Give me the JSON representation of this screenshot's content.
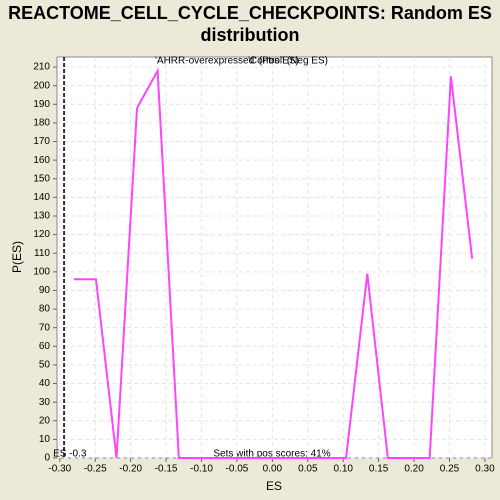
{
  "chart_data": {
    "type": "line",
    "title": "REACTOME_CELL_CYCLE_CHECKPOINTS: Random ES distribution",
    "x_label": "ES",
    "y_label": "P(ES)",
    "legend": [
      {
        "name": "'AHRR-overexpressed' (Pos ES)",
        "color": "#ff0000"
      },
      {
        "name": "'Control' (Neg ES)",
        "color": "#3333ff"
      }
    ],
    "x": [
      -0.28,
      -0.249,
      -0.22,
      -0.191,
      -0.162,
      -0.132,
      0.104,
      0.134,
      0.163,
      0.222,
      0.252,
      0.282
    ],
    "series": [
      {
        "name": "P(ES)",
        "color": "#ff44ff",
        "values": [
          96,
          96,
          0,
          188,
          208,
          0,
          0,
          99,
          0,
          0,
          205,
          107
        ]
      }
    ],
    "es_line": -0.294,
    "es_label": "ES -0.3",
    "annotation": "Sets with pos scores: 41%",
    "xlim": [
      -0.304,
      0.31
    ],
    "xticks": [
      {
        "value": -0.3,
        "label": "-0.30"
      },
      {
        "value": -0.25,
        "label": "-0.25"
      },
      {
        "value": -0.2,
        "label": "-0.20"
      },
      {
        "value": -0.15,
        "label": "-0.15"
      },
      {
        "value": -0.1,
        "label": "-0.10"
      },
      {
        "value": -0.05,
        "label": "-0.05"
      },
      {
        "value": 0,
        "label": "0.00"
      },
      {
        "value": 0.05,
        "label": "0.05"
      },
      {
        "value": 0.1,
        "label": "0.10"
      },
      {
        "value": 0.15,
        "label": "0.15"
      },
      {
        "value": 0.2,
        "label": "0.20"
      },
      {
        "value": 0.25,
        "label": "0.25"
      },
      {
        "value": 0.3,
        "label": "0.30"
      }
    ],
    "ylim": [
      0,
      215.4
    ],
    "yticks": [
      0,
      10,
      20,
      30,
      40,
      50,
      60,
      70,
      80,
      90,
      100,
      110,
      120,
      130,
      140,
      150,
      160,
      170,
      180,
      190,
      200,
      210
    ],
    "grid": true
  }
}
